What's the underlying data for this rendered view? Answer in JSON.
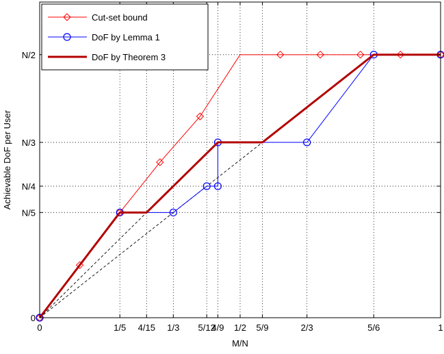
{
  "chart_data": {
    "type": "line",
    "xlabel": "M/N",
    "ylabel": "Achievable DoF per User",
    "xlim": [
      0,
      1
    ],
    "ylim": [
      0,
      0.6
    ],
    "grid": true,
    "legend_position": "top-left",
    "x_ticks": [
      {
        "value": 0,
        "label": "0"
      },
      {
        "value": 0.2,
        "label": "1/5"
      },
      {
        "value": 0.2667,
        "label": "4/15"
      },
      {
        "value": 0.3333,
        "label": "1/3"
      },
      {
        "value": 0.4167,
        "label": "5/12"
      },
      {
        "value": 0.4444,
        "label": "4/9"
      },
      {
        "value": 0.5,
        "label": "1/2"
      },
      {
        "value": 0.5556,
        "label": "5/9"
      },
      {
        "value": 0.6667,
        "label": "2/3"
      },
      {
        "value": 0.8333,
        "label": "5/6"
      },
      {
        "value": 1,
        "label": "1"
      }
    ],
    "y_ticks": [
      {
        "value": 0,
        "label": "0"
      },
      {
        "value": 0.2,
        "label": "N/5"
      },
      {
        "value": 0.25,
        "label": "N/4"
      },
      {
        "value": 0.3333,
        "label": "N/3"
      },
      {
        "value": 0.5,
        "label": "N/2"
      }
    ],
    "series": [
      {
        "name": "Cut-set bound",
        "color": "#ff0000",
        "line_width": 1,
        "marker": "diamond",
        "x": [
          0,
          0.1,
          0.2,
          0.3,
          0.4,
          0.5,
          0.6,
          0.7,
          0.8,
          0.9,
          1.0
        ],
        "y": [
          0,
          0.1,
          0.2,
          0.2955,
          0.3826,
          0.5,
          0.5,
          0.5,
          0.5,
          0.5,
          0.5
        ],
        "marker_x": [
          0,
          0.1,
          0.2,
          0.3,
          0.4,
          0.6,
          0.7,
          0.8,
          0.9,
          1.0
        ],
        "marker_y": [
          0,
          0.1,
          0.2,
          0.2955,
          0.3826,
          0.5,
          0.5,
          0.5,
          0.5,
          0.5
        ]
      },
      {
        "name": "DoF by Lemma 1",
        "color": "#0000ff",
        "line_width": 1,
        "marker": "circle",
        "x": [
          0,
          0.2,
          0.3333,
          0.4167,
          0.4444,
          0.4444,
          0.6667,
          0.8333,
          1.0
        ],
        "y": [
          0,
          0.2,
          0.2,
          0.25,
          0.25,
          0.3333,
          0.3333,
          0.5,
          0.5
        ],
        "marker_x": [
          0,
          0.2,
          0.3333,
          0.4167,
          0.4444,
          0.4444,
          0.6667,
          0.8333,
          1.0
        ],
        "marker_y": [
          0,
          0.2,
          0.2,
          0.25,
          0.25,
          0.3333,
          0.3333,
          0.5,
          0.5
        ]
      },
      {
        "name": "DoF by Theorem 3",
        "color": "#b30000",
        "line_width": 3,
        "marker": "none",
        "x": [
          0,
          0.2,
          0.2667,
          0.4444,
          0.5556,
          0.8333,
          1.0
        ],
        "y": [
          0,
          0.2,
          0.2,
          0.3333,
          0.3333,
          0.5,
          0.5
        ]
      }
    ],
    "reference_lines": [
      {
        "color": "#000000",
        "dash": true,
        "x": [
          0,
          0.5556
        ],
        "y": [
          0,
          0.3333
        ]
      },
      {
        "color": "#000000",
        "dash": true,
        "x": [
          0,
          0.4444
        ],
        "y": [
          0,
          0.3333
        ]
      }
    ]
  }
}
